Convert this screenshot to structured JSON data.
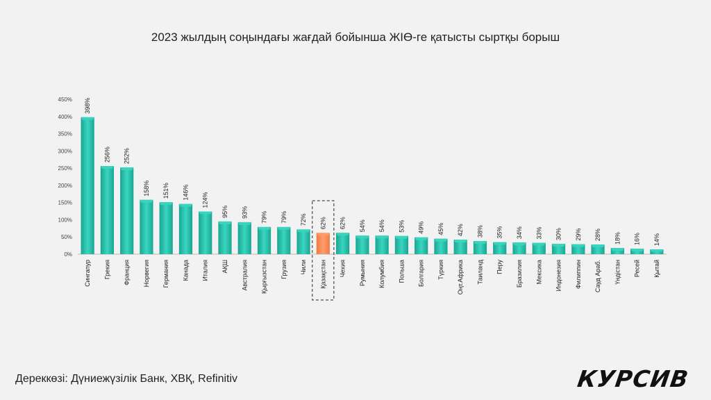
{
  "header": {
    "title": "2023 жылдың соңындағы жағдай бойынша ЖІӨ-ге қатысты сыртқы борыш"
  },
  "footer": {
    "source": "Дереккөзі: Дүниежүзілік Банк, ХВҚ, Refinitiv",
    "logo": "КУРСИВ"
  },
  "chart_data": {
    "type": "bar",
    "title": "2023 жылдың соңындағы жағдай бойынша ЖІӨ-ге қатысты сыртқы борыш",
    "categories": [
      "Сингапур",
      "Грекия",
      "Франция",
      "Норвегия",
      "Германия",
      "Канада",
      "Италия",
      "АҚШ",
      "Австралия",
      "Қырғызстан",
      "Грузия",
      "Чили",
      "Қазақстан",
      "Чехия",
      "Румыния",
      "Колумбия",
      "Польша",
      "Болгария",
      "Түркия",
      "Оңт.Африка",
      "Таиланд",
      "Перу",
      "Бразилия",
      "Мексика",
      "Индонезия",
      "Филиппин",
      "Сауд Араб.",
      "Үндістан",
      "Ресей",
      "Қытай"
    ],
    "values": [
      398,
      256,
      252,
      158,
      151,
      146,
      124,
      95,
      93,
      79,
      79,
      72,
      62,
      62,
      54,
      54,
      53,
      49,
      45,
      42,
      38,
      35,
      34,
      33,
      30,
      29,
      28,
      18,
      16,
      14
    ],
    "value_labels": [
      "398%",
      "256%",
      "252%",
      "158%",
      "151%",
      "146%",
      "124%",
      "95%",
      "93%",
      "79%",
      "79%",
      "72%",
      "62%",
      "62%",
      "54%",
      "54%",
      "53%",
      "49%",
      "45%",
      "42%",
      "38%",
      "35%",
      "34%",
      "33%",
      "30%",
      "29%",
      "28%",
      "18%",
      "16%",
      "14%"
    ],
    "y_ticks": [
      "0%",
      "50%",
      "100%",
      "150%",
      "200%",
      "250%",
      "300%",
      "350%",
      "400%",
      "450%"
    ],
    "ylim": [
      0,
      450
    ],
    "highlight_category": "Қазақстан",
    "colors": {
      "bar": "#1aa593",
      "bar_top": "#3ad6bf",
      "highlight": "#f07a45",
      "highlight_top": "#ff9d6a"
    }
  }
}
